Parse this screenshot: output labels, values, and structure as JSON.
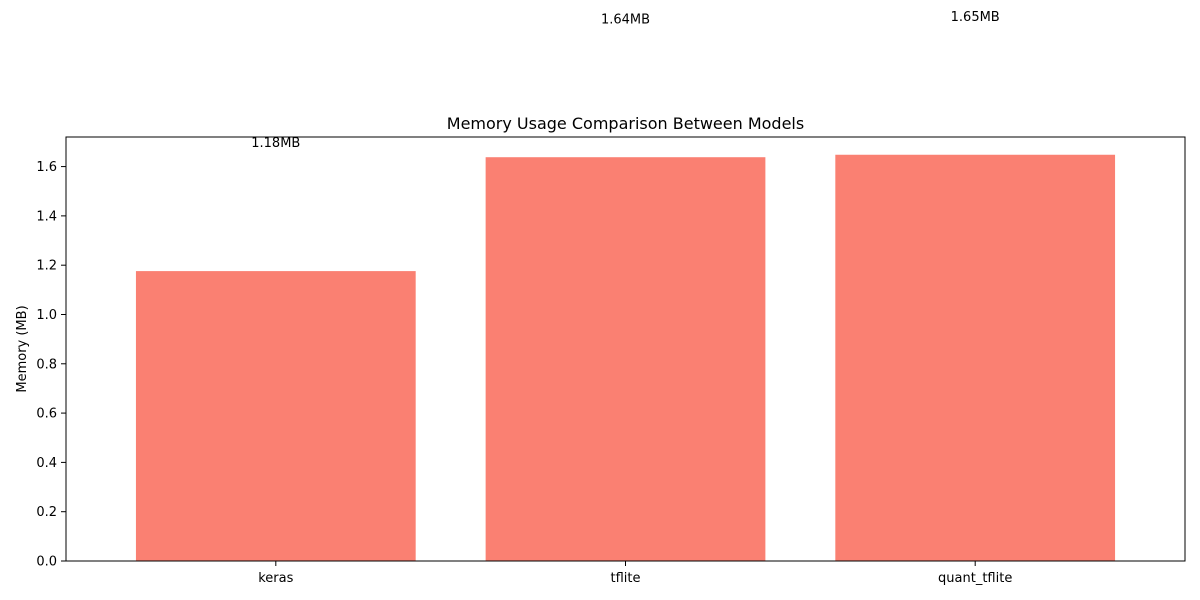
{
  "chart_data": {
    "type": "bar",
    "title": "Memory Usage Comparison Between Models",
    "xlabel": "",
    "ylabel": "Memory (MB)",
    "categories": [
      "keras",
      "tflite",
      "quant_tflite"
    ],
    "values": [
      1.176,
      1.638,
      1.648
    ],
    "data_labels": [
      "1.18MB",
      "1.64MB",
      "1.65MB"
    ],
    "data_label_heights": [
      1.7,
      2.2,
      2.21
    ],
    "ylim": [
      0,
      1.72
    ],
    "yticks": [
      0.0,
      0.2,
      0.4,
      0.6,
      0.8,
      1.0,
      1.2,
      1.4,
      1.6
    ],
    "ytick_labels": [
      "0.0",
      "0.2",
      "0.4",
      "0.6",
      "0.8",
      "1.0",
      "1.2",
      "1.4",
      "1.6"
    ],
    "bar_color": "#fa8072",
    "grid": false,
    "legend": "none"
  }
}
